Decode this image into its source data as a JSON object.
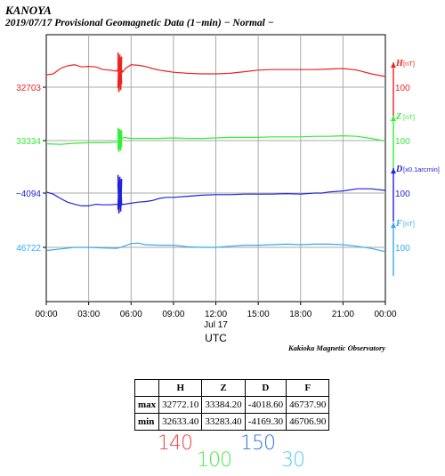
{
  "header": {
    "station": "KANOYA",
    "subtitle": "2019/07/17  Provisional Geomagnetic Data (1−min)  − Normal −"
  },
  "credit": "Kakioka Magnetic Observatory",
  "chart_data": {
    "type": "line",
    "x_ticks": [
      "00:00",
      "03:00",
      "06:00",
      "09:00",
      "12:00",
      "15:00",
      "18:00",
      "21:00",
      "00:00"
    ],
    "x_date_label": "Jul 17",
    "xlabel": "UTC",
    "x_range_hours": [
      0,
      24
    ],
    "grid": true,
    "series": [
      {
        "key": "H",
        "unit": "[nT]",
        "scale": "100",
        "left_label": "32703",
        "color": "#ee2222",
        "ref": 32703,
        "units_per_scale": 100,
        "points": [
          [
            0,
            32726
          ],
          [
            0.5,
            32728
          ],
          [
            1,
            32738
          ],
          [
            1.5,
            32743
          ],
          [
            2,
            32745
          ],
          [
            2.5,
            32741
          ],
          [
            3,
            32742
          ],
          [
            3.5,
            32741
          ],
          [
            4,
            32736
          ],
          [
            4.5,
            32735
          ],
          [
            5,
            32733
          ],
          [
            5.2,
            32745
          ],
          [
            5.4,
            32731
          ],
          [
            5.6,
            32738
          ],
          [
            6,
            32745
          ],
          [
            6.5,
            32744
          ],
          [
            7,
            32742
          ],
          [
            7.5,
            32738
          ],
          [
            8,
            32735
          ],
          [
            8.5,
            32733
          ],
          [
            9,
            32731
          ],
          [
            10,
            32729
          ],
          [
            11,
            32728
          ],
          [
            12,
            32728
          ],
          [
            13,
            32729
          ],
          [
            14,
            32732
          ],
          [
            15,
            32735
          ],
          [
            16,
            32736
          ],
          [
            17,
            32736
          ],
          [
            18,
            32736
          ],
          [
            19,
            32736
          ],
          [
            20,
            32737
          ],
          [
            21,
            32738
          ],
          [
            22,
            32735
          ],
          [
            23,
            32728
          ],
          [
            24,
            32723
          ]
        ],
        "spike": {
          "at": 5.2,
          "min": 32692,
          "max": 32768
        }
      },
      {
        "key": "Z",
        "unit": "[nT]",
        "scale": "100",
        "left_label": "33334",
        "color": "#33ee33",
        "ref": 33334,
        "units_per_scale": 100,
        "points": [
          [
            0,
            33328
          ],
          [
            1,
            33327
          ],
          [
            2,
            33329
          ],
          [
            3,
            33330
          ],
          [
            4,
            33330
          ],
          [
            5,
            33331
          ],
          [
            5.2,
            33334
          ],
          [
            5.5,
            33340
          ],
          [
            6,
            33338
          ],
          [
            7,
            33338
          ],
          [
            8,
            33338
          ],
          [
            9,
            33339
          ],
          [
            10,
            33338
          ],
          [
            11,
            33338
          ],
          [
            12,
            33339
          ],
          [
            13,
            33340
          ],
          [
            14,
            33340
          ],
          [
            15,
            33340
          ],
          [
            16,
            33341
          ],
          [
            17,
            33341
          ],
          [
            18,
            33341
          ],
          [
            19,
            33342
          ],
          [
            20,
            33342
          ],
          [
            21,
            33343
          ],
          [
            22,
            33342
          ],
          [
            23,
            33338
          ],
          [
            24,
            33333
          ]
        ],
        "spike": {
          "at": 5.2,
          "min": 33312,
          "max": 33358
        }
      },
      {
        "key": "D",
        "unit": "[x0.1arcmin]",
        "scale": "100",
        "left_label": "−4094",
        "color": "#2222dd",
        "ref": -4094,
        "units_per_scale": 100,
        "points": [
          [
            0,
            -4092
          ],
          [
            0.5,
            -4096
          ],
          [
            1,
            -4104
          ],
          [
            1.5,
            -4111
          ],
          [
            2,
            -4115
          ],
          [
            2.5,
            -4118
          ],
          [
            3,
            -4118
          ],
          [
            3.5,
            -4115
          ],
          [
            4,
            -4116
          ],
          [
            4.5,
            -4116
          ],
          [
            5,
            -4115
          ],
          [
            5.5,
            -4115
          ],
          [
            6,
            -4113
          ],
          [
            6.5,
            -4111
          ],
          [
            7,
            -4110
          ],
          [
            7.5,
            -4108
          ],
          [
            8,
            -4104
          ],
          [
            8.5,
            -4102
          ],
          [
            9,
            -4102
          ],
          [
            10,
            -4100
          ],
          [
            11,
            -4098
          ],
          [
            12,
            -4097
          ],
          [
            13,
            -4097
          ],
          [
            14,
            -4096
          ],
          [
            15,
            -4096
          ],
          [
            16,
            -4096
          ],
          [
            17,
            -4095
          ],
          [
            18,
            -4096
          ],
          [
            19,
            -4094
          ],
          [
            19.5,
            -4094
          ],
          [
            20,
            -4092
          ],
          [
            21,
            -4090
          ],
          [
            22,
            -4086
          ],
          [
            23,
            -4086
          ],
          [
            24,
            -4089
          ]
        ],
        "spike": {
          "at": 5.2,
          "min": -4134,
          "max": -4060
        }
      },
      {
        "key": "F",
        "unit": "[nT]",
        "scale": "100",
        "left_label": "46722",
        "color": "#33aaee",
        "ref": 46722,
        "units_per_scale": 100,
        "points": [
          [
            0,
            46716
          ],
          [
            1,
            46719
          ],
          [
            2,
            46722
          ],
          [
            3,
            46722
          ],
          [
            4,
            46721
          ],
          [
            5,
            46720
          ],
          [
            5.5,
            46724
          ],
          [
            6,
            46729
          ],
          [
            6.5,
            46730
          ],
          [
            7,
            46727
          ],
          [
            8,
            46726
          ],
          [
            9,
            46726
          ],
          [
            10,
            46723
          ],
          [
            11,
            46722
          ],
          [
            12,
            46722
          ],
          [
            13,
            46724
          ],
          [
            14,
            46726
          ],
          [
            15,
            46726
          ],
          [
            16,
            46727
          ],
          [
            17,
            46728
          ],
          [
            18,
            46727
          ],
          [
            19,
            46728
          ],
          [
            20,
            46728
          ],
          [
            21,
            46727
          ],
          [
            22,
            46724
          ],
          [
            23,
            46720
          ],
          [
            24,
            46714
          ]
        ]
      }
    ]
  },
  "stats_table": {
    "headers": [
      "",
      "H",
      "Z",
      "D",
      "F"
    ],
    "rows": [
      {
        "label": "max",
        "values": [
          "32772.10",
          "33384.20",
          "-4018.60",
          "46737.90"
        ]
      },
      {
        "label": "min",
        "values": [
          "32633.40",
          "33283.40",
          "-4169.30",
          "46706.90"
        ]
      }
    ]
  },
  "ranges": [
    {
      "value": "140",
      "color": "#ee4444"
    },
    {
      "value": "100",
      "color": "#44ee44"
    },
    {
      "value": "150",
      "color": "#3377dd"
    },
    {
      "value": "30",
      "color": "#55ccee"
    }
  ]
}
